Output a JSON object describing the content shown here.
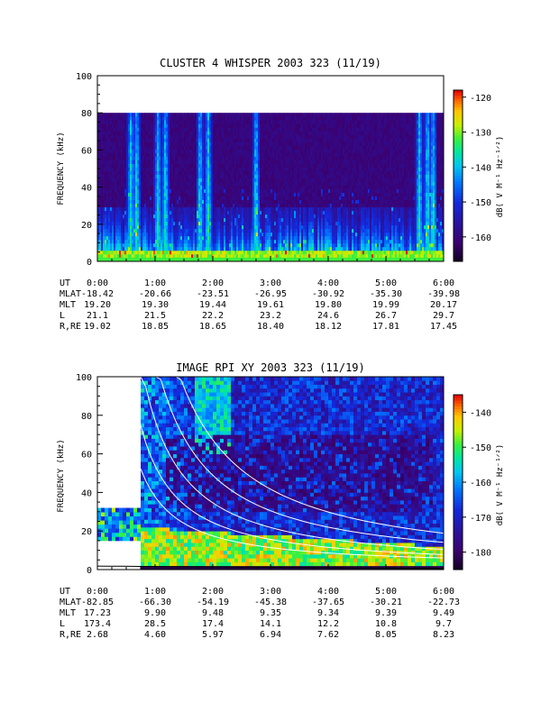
{
  "charts": [
    {
      "title": "CLUSTER 4 WHISPER 2003 323 (11/19)",
      "ylabel": "FREQUENCY (kHz)",
      "y_ticks": [
        "0",
        "20",
        "40",
        "60",
        "80",
        "100"
      ],
      "x_ticks": [
        "0:00",
        "1:00",
        "2:00",
        "3:00",
        "4:00",
        "5:00",
        "6:00"
      ],
      "colorbar_label": "dB( V M⁻¹ Hz⁻¹ᐟ²)",
      "colorbar_ticks": [
        "-120",
        "-130",
        "-140",
        "-150",
        "-160"
      ],
      "ephemeris": [
        {
          "label": "UT",
          "values": [
            "0:00",
            "1:00",
            "2:00",
            "3:00",
            "4:00",
            "5:00",
            "6:00"
          ]
        },
        {
          "label": "MLAT",
          "values": [
            "-18.42",
            "-20.66",
            "-23.51",
            "-26.95",
            "-30.92",
            "-35.30",
            "-39.98"
          ]
        },
        {
          "label": "MLT",
          "values": [
            "19.20",
            "19.30",
            "19.44",
            "19.61",
            "19.80",
            "19.99",
            "20.17"
          ]
        },
        {
          "label": "L",
          "values": [
            "21.1",
            "21.5",
            "22.2",
            "23.2",
            "24.6",
            "26.7",
            "29.7"
          ]
        },
        {
          "label": "R,RE",
          "values": [
            "19.02",
            "18.85",
            "18.65",
            "18.40",
            "18.12",
            "17.81",
            "17.45"
          ]
        }
      ]
    },
    {
      "title": "IMAGE RPI XY 2003 323 (11/19)",
      "ylabel": "FREQUENCY (kHz)",
      "y_ticks": [
        "0",
        "20",
        "40",
        "60",
        "80",
        "100"
      ],
      "x_ticks": [
        "0:00",
        "1:00",
        "2:00",
        "3:00",
        "4:00",
        "5:00",
        "6:00"
      ],
      "colorbar_label": "dB( V M⁻¹ Hz⁻¹ᐟ²)",
      "colorbar_ticks": [
        "-140",
        "-150",
        "-160",
        "-170",
        "-180"
      ],
      "ephemeris": [
        {
          "label": "UT",
          "values": [
            "0:00",
            "1:00",
            "2:00",
            "3:00",
            "4:00",
            "5:00",
            "6:00"
          ]
        },
        {
          "label": "MLAT",
          "values": [
            "-82.85",
            "-66.30",
            "-54.19",
            "-45.38",
            "-37.65",
            "-30.21",
            "-22.73"
          ]
        },
        {
          "label": "MLT",
          "values": [
            "17.23",
            "9.90",
            "9.48",
            "9.35",
            "9.34",
            "9.39",
            "9.49"
          ]
        },
        {
          "label": "L",
          "values": [
            "173.4",
            "28.5",
            "17.4",
            "14.1",
            "12.2",
            "10.8",
            "9.7"
          ]
        },
        {
          "label": "R,RE",
          "values": [
            "2.68",
            "4.60",
            "5.97",
            "6.94",
            "7.62",
            "8.05",
            "8.23"
          ]
        }
      ]
    }
  ],
  "chart_data": [
    {
      "type": "heatmap",
      "title": "CLUSTER 4 WHISPER 2003 323 (11/19)",
      "ylabel": "FREQUENCY (kHz)",
      "xlim_hours": [
        0,
        6
      ],
      "ylim": [
        0,
        100
      ],
      "data_freq_range_khz": [
        2,
        80
      ],
      "colorbar_label": "dB( V M-1 Hz-1/2)",
      "colorbar_range_db": [
        -167,
        -118
      ],
      "colorscale": "rainbow (dark purple low to red high)",
      "features": [
        {
          "kind": "broadband_bursts_to_80kHz",
          "times_hours": [
            0.58,
            0.68,
            1.05,
            1.18,
            1.78,
            1.92,
            2.75,
            5.58,
            5.72,
            5.82
          ]
        },
        {
          "kind": "persistent_low_band_emission",
          "freq_khz": [
            0,
            6
          ],
          "level": "high"
        }
      ]
    },
    {
      "type": "heatmap",
      "title": "IMAGE RPI XY 2003 323 (11/19)",
      "ylabel": "FREQUENCY (kHz)",
      "xlim_hours": [
        0,
        6
      ],
      "ylim": [
        0,
        100
      ],
      "colorbar_label": "dB( V M-1 Hz-1/2)",
      "colorbar_range_db": [
        -185,
        -135
      ],
      "colorscale": "rainbow (dark purple low to red high)",
      "data_gaps_hours": [
        [
          0,
          0.75
        ]
      ],
      "early_band": {
        "hours": [
          0,
          0.75
        ],
        "freq_khz": [
          15,
          32
        ]
      },
      "features": [
        {
          "kind": "intense_low_frequency_band",
          "freq_khz": [
            2,
            22
          ],
          "level": "high"
        },
        {
          "kind": "white_overlay_curves",
          "count": 5,
          "shape": "decreasing from upper-left toward lower-right"
        }
      ]
    }
  ]
}
